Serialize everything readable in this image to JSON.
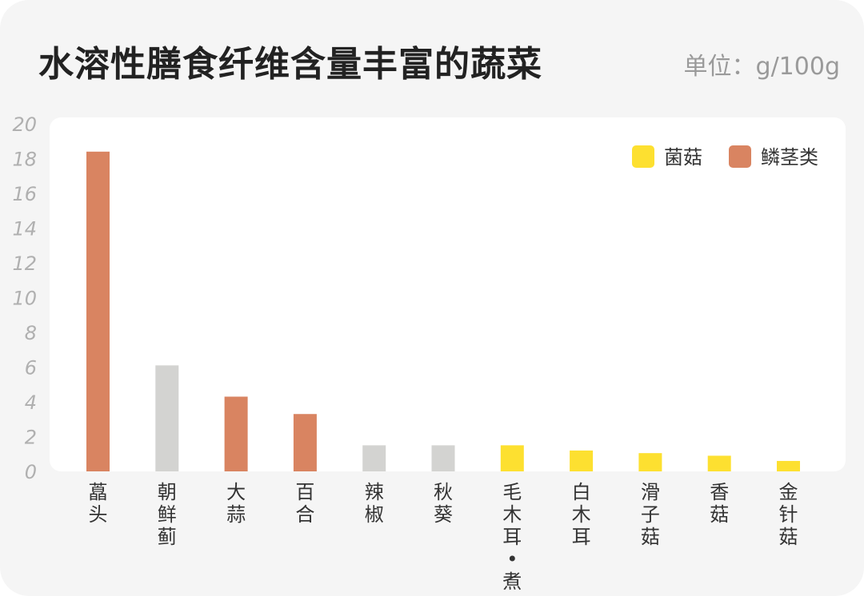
{
  "title": "水溶性膳食纤维含量丰富的蔬菜",
  "unit": "单位：g/100g",
  "colors": {
    "bulb": "#d98461",
    "fungi": "#fde030",
    "other": "#d3d3d1"
  },
  "legend": [
    {
      "label": "菌菇",
      "group": "fungi"
    },
    {
      "label": "鳞茎类",
      "group": "bulb"
    }
  ],
  "chart_data": {
    "type": "bar",
    "ylim": [
      0,
      20
    ],
    "yticks": [
      0,
      2,
      4,
      6,
      8,
      10,
      12,
      14,
      16,
      18,
      20
    ],
    "grid": false,
    "legend_position": "top-right",
    "categories": [
      {
        "name": "藠头",
        "lines": [
          "藠",
          "头"
        ],
        "value": 18.4,
        "group": "bulb"
      },
      {
        "name": "朝鲜蓟",
        "lines": [
          "朝",
          "鲜",
          "蓟"
        ],
        "value": 6.1,
        "group": "other"
      },
      {
        "name": "大蒜",
        "lines": [
          "大",
          "蒜"
        ],
        "value": 4.3,
        "group": "bulb"
      },
      {
        "name": "百合",
        "lines": [
          "百",
          "合"
        ],
        "value": 3.3,
        "group": "bulb"
      },
      {
        "name": "辣椒",
        "lines": [
          "辣",
          "椒"
        ],
        "value": 1.5,
        "group": "other"
      },
      {
        "name": "秋葵",
        "lines": [
          "秋",
          "葵"
        ],
        "value": 1.5,
        "group": "other"
      },
      {
        "name": "毛木耳·煮",
        "lines": [
          "毛",
          "木",
          "耳",
          "•",
          "煮"
        ],
        "value": 1.5,
        "group": "fungi"
      },
      {
        "name": "白木耳",
        "lines": [
          "白",
          "木",
          "耳"
        ],
        "value": 1.2,
        "group": "fungi"
      },
      {
        "name": "滑子菇",
        "lines": [
          "滑",
          "子",
          "菇"
        ],
        "value": 1.05,
        "group": "fungi"
      },
      {
        "name": "香菇",
        "lines": [
          "香",
          "菇"
        ],
        "value": 0.9,
        "group": "fungi"
      },
      {
        "name": "金针菇",
        "lines": [
          "金",
          "针",
          "菇"
        ],
        "value": 0.6,
        "group": "fungi"
      }
    ]
  }
}
